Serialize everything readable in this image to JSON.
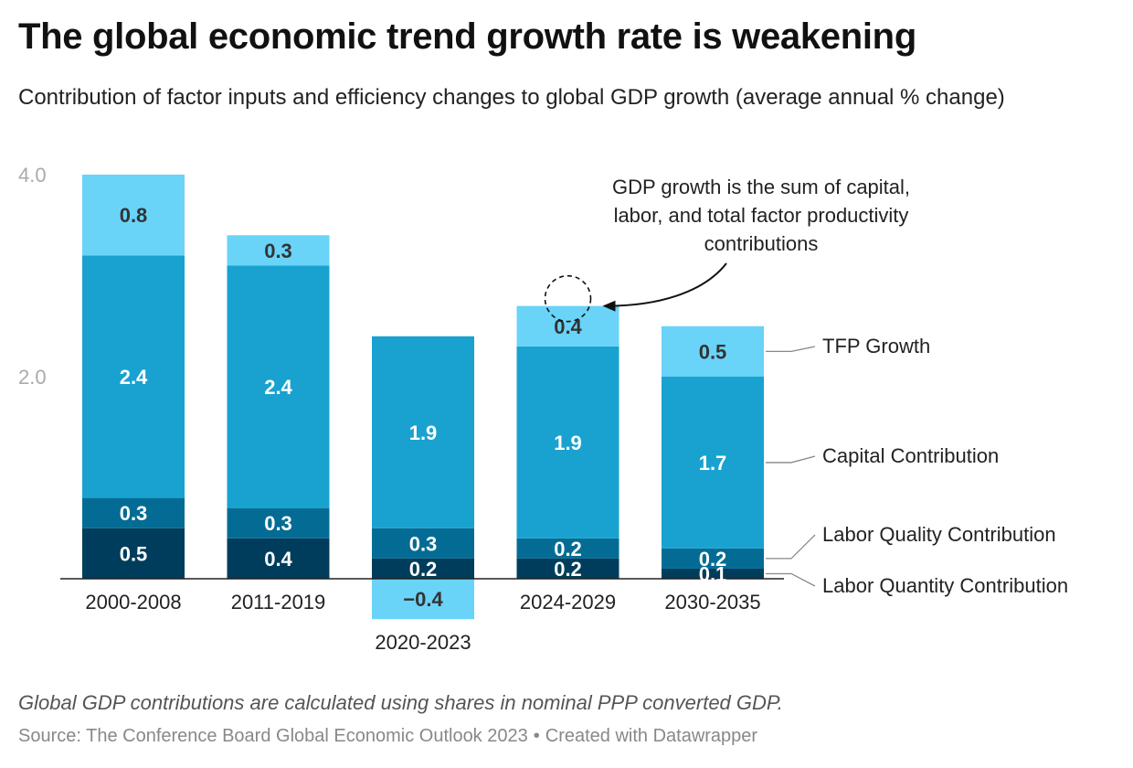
{
  "header": {
    "title": "The global economic trend growth rate is weakening",
    "subtitle": "Contribution of factor inputs and efficiency changes to global GDP growth (average annual % change)"
  },
  "footer": {
    "note": "Global GDP contributions are calculated using shares in nominal PPP converted GDP.",
    "source": "Source: The Conference Board Global Economic Outlook 2023",
    "credit": "Created with Datawrapper",
    "separator": "•"
  },
  "colors": {
    "labor_quantity": "#003d5c",
    "labor_quality": "#046c94",
    "capital": "#19a2d0",
    "tfp": "#6ad3f8",
    "axis": "#222222",
    "tick_text": "#aaaaaa"
  },
  "chart_data": {
    "type": "bar",
    "stacked": true,
    "categories": [
      "2000-2008",
      "2011-2019",
      "2020-2023",
      "2024-2029",
      "2030-2035"
    ],
    "series": [
      {
        "name": "Labor Quantity Contribution",
        "key": "labor_quantity",
        "values": [
          0.5,
          0.4,
          0.2,
          0.2,
          0.1
        ]
      },
      {
        "name": "Labor Quality Contribution",
        "key": "labor_quality",
        "values": [
          0.3,
          0.3,
          0.3,
          0.2,
          0.2
        ]
      },
      {
        "name": "Capital Contribution",
        "key": "capital",
        "values": [
          2.4,
          2.4,
          1.9,
          1.9,
          1.7
        ]
      },
      {
        "name": "TFP Growth",
        "key": "tfp",
        "values": [
          0.8,
          0.3,
          -0.4,
          0.4,
          0.5
        ]
      }
    ],
    "value_labels": [
      [
        "0.5",
        "0.4",
        "0.2",
        "0.2",
        "0.1"
      ],
      [
        "0.3",
        "0.3",
        "0.3",
        "0.2",
        "0.2"
      ],
      [
        "2.4",
        "2.4",
        "1.9",
        "1.9",
        "1.7"
      ],
      [
        "0.8",
        "0.3",
        "−0.4",
        "0.4",
        "0.5"
      ]
    ],
    "yticks": [
      {
        "value": 2.0,
        "label": "2.0"
      },
      {
        "value": 4.0,
        "label": "4.0"
      }
    ],
    "ylim": [
      -0.4,
      4.0
    ],
    "legend_placement": "right, direct labels",
    "annotation": {
      "lines": [
        "GDP growth is the sum of capital,",
        "labor, and total factor productivity",
        "contributions"
      ],
      "target_category": "2024-2029"
    }
  }
}
